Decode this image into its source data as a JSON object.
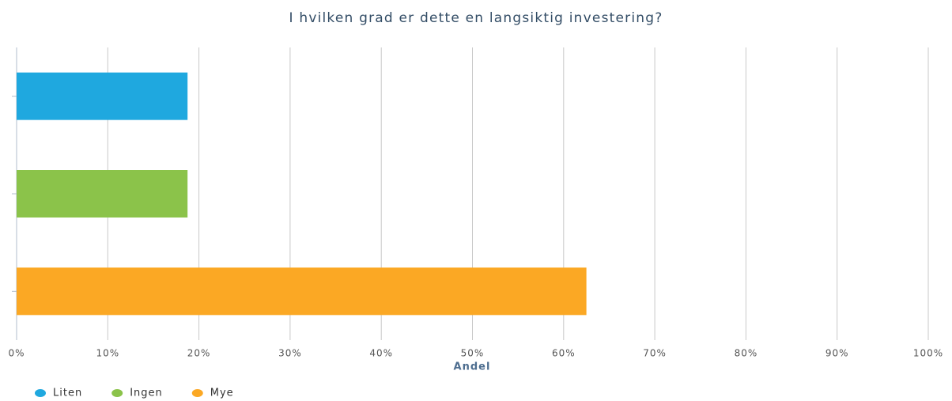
{
  "chart_data": {
    "type": "bar",
    "orientation": "horizontal",
    "title": "I hvilken grad er dette en langsiktig investering?",
    "x_label": "Andel",
    "series": [
      {
        "name": "Liten",
        "color": "#1fa8df",
        "values": [
          18.75
        ]
      },
      {
        "name": "Ingen",
        "color": "#8bc34a",
        "values": [
          18.75
        ]
      },
      {
        "name": "Mye",
        "color": "#fba824",
        "values": [
          62.5
        ]
      }
    ],
    "xlim": [
      0,
      100
    ],
    "xticks": [
      {
        "value": 0,
        "label": "0%"
      },
      {
        "value": 10,
        "label": "10%"
      },
      {
        "value": 20,
        "label": "20%"
      },
      {
        "value": 30,
        "label": "30%"
      },
      {
        "value": 40,
        "label": "40%"
      },
      {
        "value": 50,
        "label": "50%"
      },
      {
        "value": 60,
        "label": "60%"
      },
      {
        "value": 70,
        "label": "70%"
      },
      {
        "value": 80,
        "label": "80%"
      },
      {
        "value": 90,
        "label": "90%"
      },
      {
        "value": 100,
        "label": "100%"
      }
    ],
    "grid": true
  }
}
